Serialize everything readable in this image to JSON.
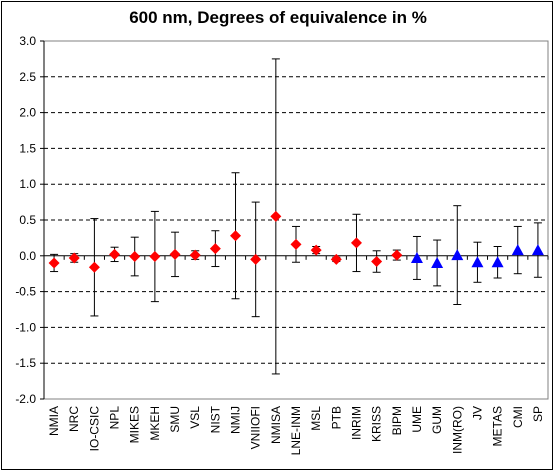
{
  "chart_data": {
    "type": "scatter",
    "title": "600 nm, Degrees of equivalence in %",
    "xlabel": "",
    "ylabel": "",
    "ylim": [
      -2.0,
      3.0
    ],
    "yticks": [
      -2.0,
      -1.5,
      -1.0,
      -0.5,
      0.0,
      0.5,
      1.0,
      1.5,
      2.0,
      2.5,
      3.0
    ],
    "gridlines": "horizontal-dashed",
    "legend": "none",
    "colors": {
      "red_series": "#ff0000",
      "blue_series": "#0000ff",
      "error_bar": "#000000"
    },
    "categories": [
      "NMIA",
      "NRC",
      "IO-CSIC",
      "NPL",
      "MIKES",
      "MKEH",
      "SMU",
      "VSL",
      "NIST",
      "NMIJ",
      "VNIIOFI",
      "NMISA",
      "LNE-INM",
      "MSL",
      "PTB",
      "INRIM",
      "KRISS",
      "BIPM",
      "UME",
      "GUM",
      "INM(RO)",
      "JV",
      "METAS",
      "CMI",
      "SP"
    ],
    "series": [
      {
        "marker": "diamond",
        "color": "#ff0000",
        "points": [
          {
            "x": "NMIA",
            "y": -0.1,
            "err": 0.12
          },
          {
            "x": "NRC",
            "y": -0.03,
            "err": 0.06
          },
          {
            "x": "IO-CSIC",
            "y": -0.16,
            "err": 0.68
          },
          {
            "x": "NPL",
            "y": 0.02,
            "err": 0.1
          },
          {
            "x": "MIKES",
            "y": -0.01,
            "err": 0.27
          },
          {
            "x": "MKEH",
            "y": -0.01,
            "err": 0.63
          },
          {
            "x": "SMU",
            "y": 0.02,
            "err": 0.31
          },
          {
            "x": "VSL",
            "y": 0.01,
            "err": 0.06
          },
          {
            "x": "NIST",
            "y": 0.1,
            "err": 0.25
          },
          {
            "x": "NMIJ",
            "y": 0.28,
            "err": 0.88
          },
          {
            "x": "VNIIOFI",
            "y": -0.05,
            "err": 0.8
          },
          {
            "x": "NMISA",
            "y": 0.55,
            "err": 2.2
          },
          {
            "x": "LNE-INM",
            "y": 0.16,
            "err": 0.25
          },
          {
            "x": "MSL",
            "y": 0.08,
            "err": 0.05
          },
          {
            "x": "PTB",
            "y": -0.05,
            "err": 0.03
          },
          {
            "x": "INRIM",
            "y": 0.18,
            "err": 0.4
          },
          {
            "x": "KRISS",
            "y": -0.08,
            "err": 0.15
          },
          {
            "x": "BIPM",
            "y": 0.01,
            "err": 0.07
          }
        ]
      },
      {
        "marker": "triangle",
        "color": "#0000ff",
        "points": [
          {
            "x": "UME",
            "y": -0.03,
            "err": 0.3
          },
          {
            "x": "GUM",
            "y": -0.1,
            "err": 0.32
          },
          {
            "x": "INM(RO)",
            "y": 0.01,
            "err": 0.69
          },
          {
            "x": "JV",
            "y": -0.09,
            "err": 0.28
          },
          {
            "x": "METAS",
            "y": -0.09,
            "err": 0.22
          },
          {
            "x": "CMI",
            "y": 0.08,
            "err": 0.33
          },
          {
            "x": "SP",
            "y": 0.08,
            "err": 0.38
          }
        ]
      }
    ]
  }
}
